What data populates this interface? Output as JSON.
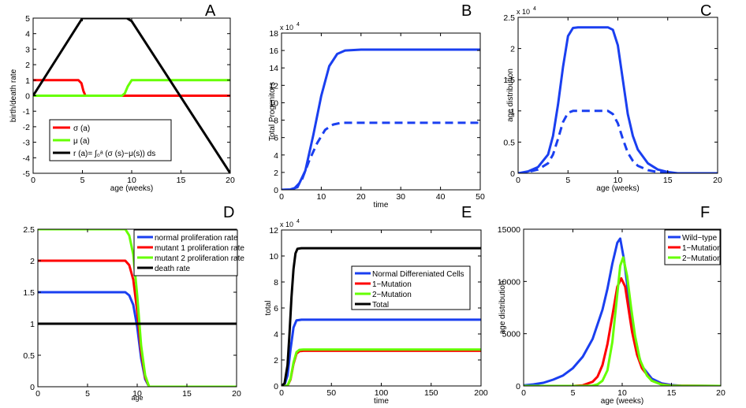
{
  "figure": {
    "background": "#ffffff"
  },
  "chart_data": [
    {
      "panel_label": "A",
      "type": "line",
      "xlabel": "age (weeks)",
      "ylabel": "birth/death rate",
      "xlim": [
        0,
        20
      ],
      "ylim": [
        -5,
        5
      ],
      "xticks": [
        0,
        5,
        10,
        15,
        20
      ],
      "yticks": [
        -5,
        -4,
        -3,
        -2,
        -1,
        0,
        1,
        2,
        3,
        4,
        5
      ],
      "series": [
        {
          "name": "σ (a)",
          "color": "#ff0000",
          "style": "solid",
          "x": [
            0,
            4.6,
            4.9,
            5.1,
            5.3,
            20
          ],
          "y": [
            1,
            1,
            0.8,
            0.3,
            0,
            0
          ]
        },
        {
          "name": "μ (a)",
          "color": "#66ff00",
          "style": "solid",
          "x": [
            0,
            9,
            9.3,
            9.6,
            10,
            20
          ],
          "y": [
            0,
            0,
            0.15,
            0.6,
            1,
            1
          ]
        },
        {
          "name": "r (a)= ∫₀ᵃ (σ (s)−μ(s)) ds",
          "color": "#000000",
          "style": "solid",
          "x": [
            0,
            5,
            5.5,
            9.5,
            10,
            20
          ],
          "y": [
            0,
            5,
            5,
            5,
            4.8,
            -5
          ]
        }
      ],
      "legend": "lower-center"
    },
    {
      "panel_label": "B",
      "type": "line",
      "xlabel": "time",
      "ylabel": "Total Progenitors",
      "xlim": [
        0,
        50
      ],
      "ylim": [
        0,
        18
      ],
      "xticks": [
        0,
        10,
        20,
        30,
        40,
        50
      ],
      "yticks": [
        0,
        2,
        4,
        6,
        8,
        10,
        12,
        14,
        16,
        18
      ],
      "scale_label": "x 10",
      "scale_exp": "4",
      "series": [
        {
          "name": "total",
          "color": "#1a3ff0",
          "style": "solid",
          "x": [
            0,
            2,
            4,
            6,
            8,
            10,
            12,
            14,
            16,
            20,
            30,
            50
          ],
          "y": [
            0,
            0.02,
            0.3,
            2.2,
            6.3,
            10.8,
            14.2,
            15.6,
            16,
            16.1,
            16.1,
            16.1
          ]
        },
        {
          "name": "dashed",
          "color": "#1a3ff0",
          "style": "dashed",
          "x": [
            0,
            3,
            5,
            7,
            9,
            11,
            13,
            15,
            17,
            20,
            30,
            50
          ],
          "y": [
            0,
            0.05,
            1,
            3.4,
            5.4,
            6.9,
            7.5,
            7.7,
            7.7,
            7.7,
            7.7,
            7.7
          ]
        }
      ]
    },
    {
      "panel_label": "C",
      "type": "line",
      "xlabel": "age (weeks)",
      "ylabel": "age distribution",
      "xlim": [
        0,
        20
      ],
      "ylim": [
        0,
        2.5
      ],
      "xticks": [
        0,
        5,
        10,
        15,
        20
      ],
      "yticks": [
        0,
        0.5,
        1,
        1.5,
        2,
        2.5
      ],
      "scale_label": "x 10",
      "scale_exp": "4",
      "series": [
        {
          "name": "solid",
          "color": "#1a3ff0",
          "style": "solid",
          "x": [
            0,
            1,
            2,
            3,
            3.5,
            4,
            4.5,
            5,
            5.5,
            6,
            9,
            9.5,
            10,
            10.5,
            11,
            11.5,
            12,
            13,
            14,
            15,
            16,
            20
          ],
          "y": [
            0,
            0.03,
            0.1,
            0.3,
            0.6,
            1.1,
            1.7,
            2.2,
            2.33,
            2.34,
            2.34,
            2.3,
            2.05,
            1.5,
            0.95,
            0.6,
            0.38,
            0.16,
            0.06,
            0.02,
            0,
            0
          ]
        },
        {
          "name": "dashed",
          "color": "#1a3ff0",
          "style": "dashed",
          "x": [
            0,
            1,
            2,
            3,
            3.5,
            4,
            4.5,
            5,
            5.5,
            9,
            9.5,
            10,
            10.5,
            11,
            11.5,
            12,
            13,
            14,
            15,
            20
          ],
          "y": [
            0,
            0.02,
            0.06,
            0.16,
            0.3,
            0.55,
            0.82,
            0.97,
            1,
            1,
            0.95,
            0.8,
            0.55,
            0.33,
            0.2,
            0.12,
            0.05,
            0.02,
            0,
            0
          ]
        }
      ]
    },
    {
      "panel_label": "D",
      "type": "line",
      "xlabel": "age",
      "ylabel": "",
      "xlim": [
        0,
        20
      ],
      "ylim": [
        0,
        2.5
      ],
      "xticks": [
        0,
        5,
        10,
        15,
        20
      ],
      "yticks": [
        0,
        0.5,
        1,
        1.5,
        2,
        2.5
      ],
      "series": [
        {
          "name": "normal proliferation rate",
          "color": "#1a3ff0",
          "style": "solid",
          "x": [
            0,
            8.8,
            9.2,
            9.6,
            10,
            10.4,
            10.8,
            11.2,
            20
          ],
          "y": [
            1.5,
            1.5,
            1.45,
            1.3,
            0.95,
            0.45,
            0.12,
            0,
            0
          ]
        },
        {
          "name": "mutant 1 proliferation rate",
          "color": "#ff0000",
          "style": "solid",
          "x": [
            0,
            8.8,
            9.2,
            9.6,
            10,
            10.4,
            10.8,
            11.2,
            20
          ],
          "y": [
            2,
            2,
            1.93,
            1.7,
            1.2,
            0.55,
            0.15,
            0,
            0
          ]
        },
        {
          "name": "mutant 2 proliferation rate",
          "color": "#66ff00",
          "style": "solid",
          "x": [
            0,
            8.8,
            9.2,
            9.6,
            10,
            10.4,
            10.8,
            11.2,
            20
          ],
          "y": [
            2.5,
            2.5,
            2.4,
            2.1,
            1.45,
            0.65,
            0.18,
            0,
            0
          ]
        },
        {
          "name": "death rate",
          "color": "#000000",
          "style": "solid",
          "x": [
            0,
            20
          ],
          "y": [
            1,
            1
          ]
        }
      ],
      "legend": "top-right"
    },
    {
      "panel_label": "E",
      "type": "line",
      "xlabel": "time",
      "ylabel": "total",
      "xlim": [
        0,
        200
      ],
      "ylim": [
        0,
        12
      ],
      "xticks": [
        0,
        50,
        100,
        150,
        200
      ],
      "yticks": [
        0,
        2,
        4,
        6,
        8,
        10,
        12
      ],
      "scale_label": "x 10",
      "scale_exp": "4",
      "series": [
        {
          "name": "Normal Differeniated Cells",
          "color": "#1a3ff0",
          "style": "solid",
          "x": [
            0,
            3,
            6,
            9,
            12,
            15,
            20,
            200
          ],
          "y": [
            0,
            0.1,
            0.8,
            2.8,
            4.5,
            5.05,
            5.1,
            5.1
          ]
        },
        {
          "name": "1−Mutation",
          "color": "#ff0000",
          "style": "solid",
          "x": [
            0,
            6,
            9,
            12,
            15,
            18,
            22,
            200
          ],
          "y": [
            0,
            0.02,
            0.5,
            1.7,
            2.5,
            2.68,
            2.7,
            2.7
          ]
        },
        {
          "name": "2−Mutation",
          "color": "#66ff00",
          "style": "solid",
          "x": [
            0,
            6,
            9,
            12,
            15,
            18,
            22,
            200
          ],
          "y": [
            0,
            0.02,
            0.55,
            1.8,
            2.6,
            2.78,
            2.8,
            2.8
          ]
        },
        {
          "name": "Total",
          "color": "#000000",
          "style": "solid",
          "x": [
            0,
            3,
            6,
            8,
            10,
            12,
            14,
            16,
            20,
            200
          ],
          "y": [
            0,
            0.2,
            1.6,
            4,
            6.8,
            9,
            10.2,
            10.55,
            10.6,
            10.6
          ]
        }
      ],
      "legend": "center-right"
    },
    {
      "panel_label": "F",
      "type": "line",
      "xlabel": "age (weeks)",
      "ylabel": "age distribution",
      "xlim": [
        0,
        20
      ],
      "ylim": [
        0,
        15000
      ],
      "xticks": [
        0,
        5,
        10,
        15,
        20
      ],
      "yticks": [
        0,
        5000,
        10000,
        15000
      ],
      "series": [
        {
          "name": "Wild−type",
          "color": "#1a3ff0",
          "style": "solid",
          "x": [
            0,
            1,
            2,
            3,
            4,
            5,
            6,
            7,
            8,
            8.5,
            9,
            9.5,
            9.8,
            10.2,
            10.6,
            11,
            11.5,
            12,
            13,
            14,
            15,
            16,
            20
          ],
          "y": [
            50,
            150,
            300,
            600,
            1000,
            1700,
            2800,
            4500,
            7300,
            9300,
            11700,
            13700,
            14100,
            12000,
            9000,
            6000,
            3500,
            1900,
            700,
            250,
            80,
            20,
            0
          ]
        },
        {
          "name": "1−Mutation",
          "color": "#ff0000",
          "style": "solid",
          "x": [
            0,
            5,
            6,
            7,
            7.5,
            8,
            8.5,
            9,
            9.5,
            9.9,
            10.3,
            10.7,
            11,
            11.5,
            12,
            13,
            14,
            15,
            20
          ],
          "y": [
            0,
            0,
            60,
            400,
            900,
            2000,
            4000,
            6700,
            9500,
            10300,
            9500,
            7000,
            5200,
            3000,
            1700,
            500,
            150,
            30,
            0
          ]
        },
        {
          "name": "2−Mutation",
          "color": "#66ff00",
          "style": "solid",
          "x": [
            0,
            6,
            7,
            7.5,
            8,
            8.5,
            9,
            9.5,
            9.8,
            10.1,
            10.5,
            10.9,
            11.3,
            11.8,
            12.5,
            13,
            14,
            15,
            20
          ],
          "y": [
            0,
            0,
            30,
            150,
            500,
            1500,
            4200,
            8800,
            11500,
            12300,
            10500,
            7500,
            4800,
            2500,
            1000,
            500,
            120,
            20,
            0
          ]
        }
      ],
      "legend": "top-right"
    }
  ]
}
